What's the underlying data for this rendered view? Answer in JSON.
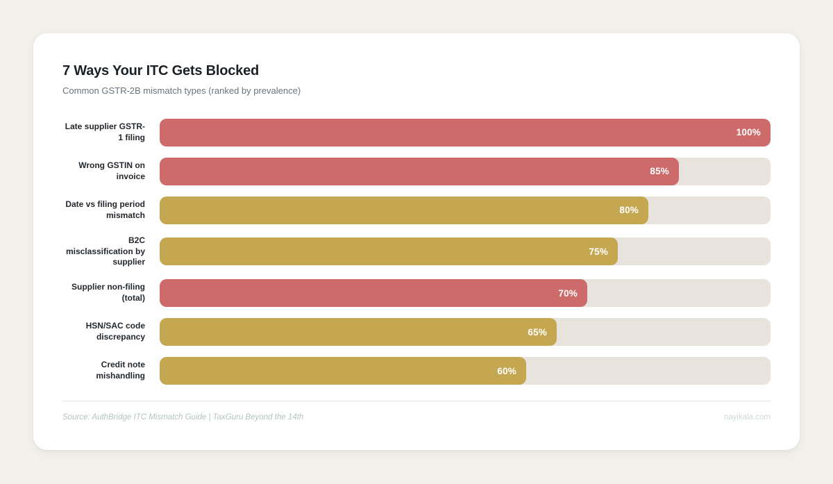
{
  "header": {
    "title": "7 Ways Your ITC Gets Blocked",
    "subtitle": "Common GSTR-2B mismatch types (ranked by prevalence)"
  },
  "footer": {
    "source": "Source: AuthBridge ITC Mismatch Guide | TaxGuru Beyond the 14th",
    "site": "nayikala.com"
  },
  "colors": {
    "red": "#cc6b69",
    "gold": "#c6a751",
    "track": "#e8e4dd",
    "page_bg": "#f2f0ea",
    "card_bg": "#ffffff"
  },
  "chart_data": {
    "type": "bar",
    "orientation": "horizontal",
    "title": "7 Ways Your ITC Gets Blocked",
    "subtitle": "Common GSTR-2B mismatch types (ranked by prevalence)",
    "xlim": [
      0,
      100
    ],
    "grid": false,
    "legend": false,
    "categories": [
      "Late supplier GSTR-1 filing",
      "Wrong GSTIN on invoice",
      "Date vs filing period mismatch",
      "B2C misclassification by supplier",
      "Supplier non-filing (total)",
      "HSN/SAC code discrepancy",
      "Credit note mishandling"
    ],
    "values": [
      100,
      85,
      80,
      75,
      70,
      65,
      60
    ],
    "value_labels": [
      "100%",
      "85%",
      "80%",
      "75%",
      "70%",
      "65%",
      "60%"
    ],
    "bar_color_keys": [
      "red",
      "red",
      "gold",
      "gold",
      "red",
      "gold",
      "gold"
    ]
  }
}
